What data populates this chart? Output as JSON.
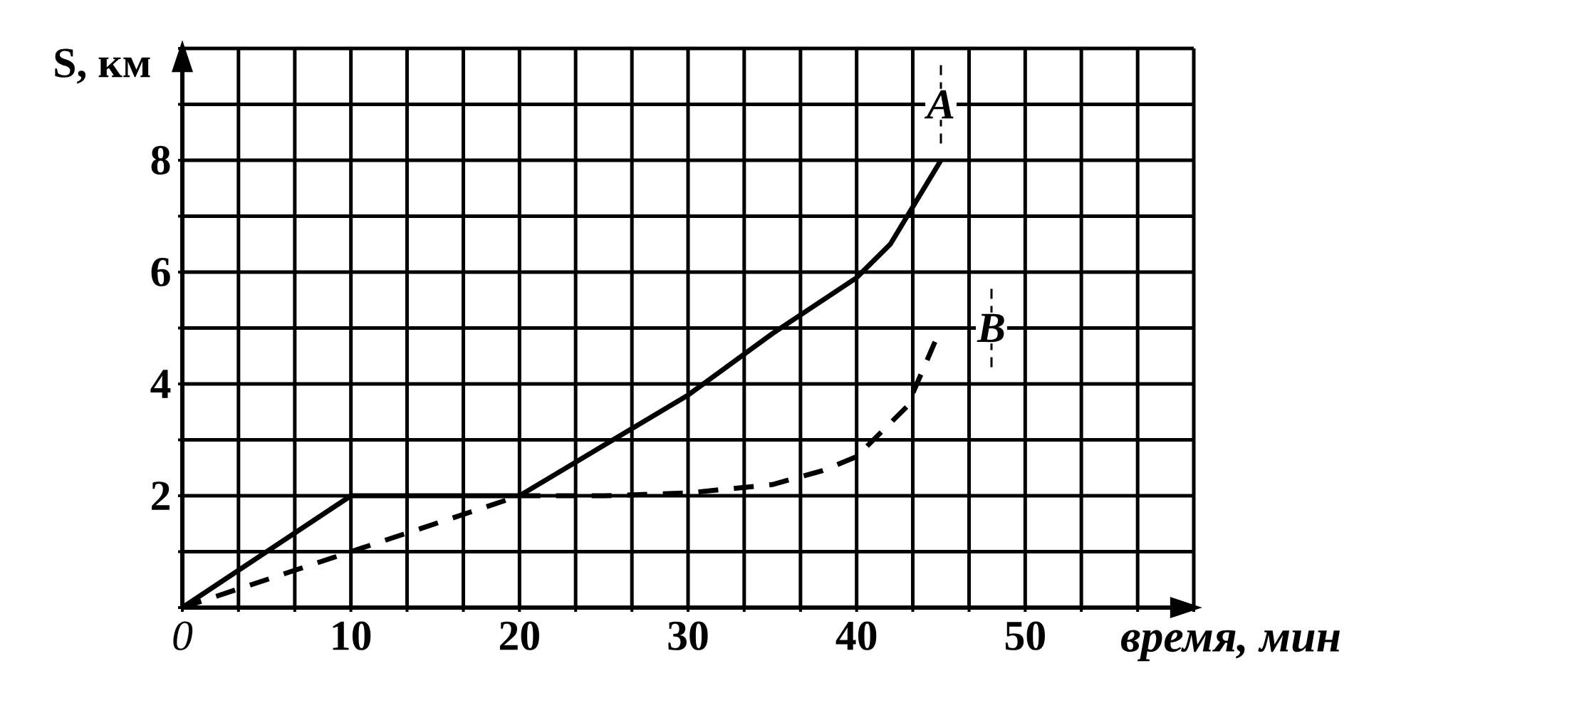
{
  "chart_data": {
    "type": "line",
    "xlabel": "время, мин",
    "ylabel": "S, км",
    "xlim": [
      0,
      60
    ],
    "ylim": [
      0,
      10
    ],
    "xticks": [
      {
        "value": 0,
        "label": "0"
      },
      {
        "value": 3.33,
        "label": null
      },
      {
        "value": 6.67,
        "label": null
      },
      10,
      {
        "value": 13.33,
        "label": null
      },
      {
        "value": 16.67,
        "label": null
      },
      20,
      {
        "value": 23.33,
        "label": null
      },
      {
        "value": 26.67,
        "label": null
      },
      30,
      {
        "value": 33.33,
        "label": null
      },
      {
        "value": 36.67,
        "label": null
      },
      40,
      {
        "value": 43.33,
        "label": null
      },
      {
        "value": 46.67,
        "label": null
      },
      50,
      {
        "value": 53.33,
        "label": null
      },
      {
        "value": 56.67,
        "label": null
      },
      {
        "value": 60,
        "label": null
      }
    ],
    "yticks": [
      {
        "value": 0,
        "label": null
      },
      {
        "value": 1,
        "label": null
      },
      2,
      {
        "value": 3,
        "label": null
      },
      4,
      {
        "value": 5,
        "label": null
      },
      6,
      {
        "value": 7,
        "label": null
      },
      8,
      {
        "value": 9,
        "label": null
      },
      {
        "value": 10,
        "label": null
      }
    ],
    "grid": true,
    "series": [
      {
        "color": "#000000",
        "line_style": "solid",
        "x": [
          0,
          10,
          20,
          25,
          30,
          35,
          40,
          42,
          45
        ],
        "values": [
          0,
          2,
          2,
          2.9,
          3.8,
          4.9,
          5.9,
          6.5,
          8
        ]
      },
      {
        "color": "#000000",
        "line_style": "dashed",
        "x": [
          0,
          10,
          20,
          25,
          30,
          35,
          38,
          40,
          43,
          45
        ],
        "values": [
          0,
          1,
          2,
          2,
          2.05,
          2.2,
          2.45,
          2.7,
          3.6,
          5
        ]
      }
    ],
    "annotations": [
      {
        "text": "A",
        "x": 45,
        "y": 9
      },
      {
        "text": "B",
        "x": 48,
        "y": 5
      }
    ]
  }
}
